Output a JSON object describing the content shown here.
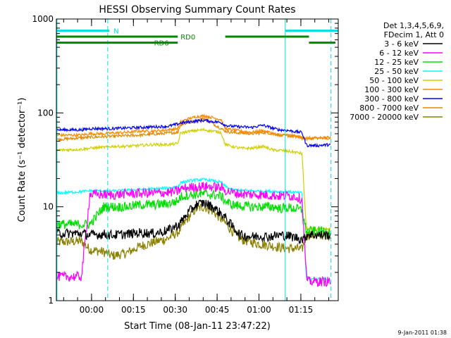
{
  "chart_data": {
    "type": "line",
    "title": "HESSI Observing Summary Count Rates",
    "xlabel": "Start Time (08-Jan-11 23:47:22)",
    "ylabel": "Count Rate (s⁻¹ detector⁻¹)",
    "x_unit": "minutes since start time",
    "xlim": [
      0,
      101
    ],
    "ylim": [
      1,
      1000
    ],
    "yscale": "log",
    "grid": false,
    "legend_position": "right",
    "x_ticks": [
      {
        "x": 12.6,
        "label": "00:00"
      },
      {
        "x": 27.6,
        "label": "00:15"
      },
      {
        "x": 42.6,
        "label": "00:30"
      },
      {
        "x": 57.6,
        "label": "00:45"
      },
      {
        "x": 72.6,
        "label": "01:00"
      },
      {
        "x": 87.6,
        "label": "01:15"
      }
    ],
    "y_ticks": [
      {
        "y": 1,
        "label": "1"
      },
      {
        "y": 10,
        "label": "10"
      },
      {
        "y": 100,
        "label": "100"
      },
      {
        "y": 1000,
        "label": "1000"
      }
    ],
    "legend_header": [
      "Det 1,3,4,5,6,9,",
      "FDecim 1, Att 0"
    ],
    "series": [
      {
        "name": "3 - 6 keV",
        "color": "#000000",
        "x": [
          0,
          9,
          12,
          17,
          20,
          25,
          30,
          35,
          40,
          44,
          47,
          50,
          53,
          56,
          60,
          63,
          66,
          70,
          73,
          76,
          80,
          83,
          86,
          88.5,
          90,
          94,
          98.4
        ],
        "y": [
          5.2,
          5.2,
          5.0,
          5.1,
          5.0,
          5.1,
          5.3,
          5.2,
          5.6,
          6.5,
          8.5,
          10.5,
          11,
          10,
          8,
          6.2,
          5.0,
          4.8,
          4.9,
          4.8,
          5.0,
          4.9,
          4.7,
          4.5,
          5.1,
          5.0,
          5.0
        ]
      },
      {
        "name": "6 - 12 keV",
        "color": "#ff00ff",
        "x": [
          0,
          4,
          9,
          12,
          17,
          20,
          25,
          30,
          35,
          40,
          43.5,
          44.5,
          47,
          50,
          53,
          56,
          59,
          60.5,
          63,
          66,
          70,
          74,
          78,
          80,
          83,
          86,
          88,
          89.5,
          90,
          94,
          98.4
        ],
        "y": [
          1.8,
          1.8,
          1.8,
          13.5,
          13.5,
          13.3,
          13.8,
          13.9,
          14,
          14.2,
          14.6,
          15.5,
          16,
          16.3,
          16.5,
          16.3,
          16,
          15,
          14.2,
          13.7,
          13.5,
          13.4,
          13.2,
          13,
          13.2,
          12.8,
          12,
          2,
          1.6,
          1.6,
          1.6
        ]
      },
      {
        "name": "12 - 25 keV",
        "color": "#00e000",
        "x": [
          0,
          9,
          12,
          17,
          20,
          25,
          30,
          35,
          40,
          43.5,
          44.5,
          47,
          50,
          53,
          56,
          59,
          60.5,
          63,
          66,
          70,
          74,
          78,
          80,
          83,
          86,
          88,
          89.5,
          90,
          94,
          98.4
        ],
        "y": [
          6.5,
          6.5,
          6.5,
          10,
          10,
          10,
          10.5,
          10.5,
          10.8,
          11.5,
          12.8,
          13.3,
          13.6,
          13.7,
          13.4,
          13,
          11.5,
          10.5,
          10.2,
          10,
          10,
          10,
          9.6,
          9.8,
          9.5,
          9.2,
          5.5,
          5.5,
          5.5,
          5.5
        ]
      },
      {
        "name": "25 - 50 keV",
        "color": "#00ffff",
        "x": [
          0,
          9,
          12,
          17,
          20,
          25,
          30,
          35,
          40,
          43.5,
          44.5,
          47,
          50,
          53,
          56,
          59,
          60.5,
          63,
          66,
          70,
          74,
          78,
          80,
          83,
          86,
          88,
          89.5,
          90,
          94,
          98.4
        ],
        "y": [
          14,
          14.5,
          14.8,
          14.8,
          14.7,
          15,
          15.3,
          15.5,
          15.8,
          16.5,
          18,
          18.8,
          19.3,
          19.5,
          19,
          18.2,
          16.5,
          15.2,
          15,
          14.8,
          14.7,
          14.6,
          14.4,
          14.5,
          14.2,
          14,
          1.8,
          1.7,
          1.7,
          1.7
        ]
      },
      {
        "name": "50 - 100 keV",
        "color": "#d0d000",
        "x": [
          0,
          9,
          12,
          17,
          20,
          25,
          30,
          35,
          40,
          43.5,
          44.5,
          47,
          50,
          53,
          56,
          59,
          60.5,
          63,
          66,
          70,
          74,
          78,
          80,
          83,
          86,
          88,
          89.5,
          90,
          94,
          98.4
        ],
        "y": [
          40,
          41,
          42,
          43,
          44,
          44,
          45,
          46,
          46,
          47,
          61,
          63,
          65,
          66,
          64,
          62,
          46,
          44,
          42,
          42,
          44,
          40,
          40,
          39,
          38,
          37,
          6,
          5.8,
          5.8,
          5.8
        ]
      },
      {
        "name": "100 - 300 keV",
        "color": "#ff8800",
        "x": [
          0,
          9,
          12,
          17,
          20,
          25,
          30,
          35,
          40,
          43.5,
          44.5,
          47,
          50,
          53,
          56,
          59,
          60.5,
          63,
          66,
          70,
          74,
          78,
          80,
          83,
          86,
          88,
          89.5,
          90,
          94,
          98.4
        ],
        "y": [
          58,
          58,
          60,
          60,
          61,
          62,
          64,
          64,
          66,
          68,
          80,
          86,
          91,
          93,
          89,
          85,
          68,
          66,
          64,
          62,
          65,
          60,
          58,
          58,
          56,
          55,
          54,
          54,
          54,
          54
        ]
      },
      {
        "name": "300 - 800 keV",
        "color": "#0000ff",
        "x": [
          0,
          9,
          12,
          17,
          20,
          25,
          30,
          35,
          40,
          43.5,
          44.5,
          47,
          50,
          53,
          56,
          59,
          60.5,
          63,
          66,
          70,
          74,
          78,
          80,
          83,
          86,
          88,
          89.5,
          90,
          94,
          98.4
        ],
        "y": [
          66,
          66,
          68,
          68,
          68,
          69,
          70,
          71,
          72,
          76,
          78,
          80,
          82,
          83,
          81,
          79,
          74,
          72,
          71,
          70,
          74,
          68,
          66,
          65,
          63,
          62,
          46,
          45,
          45,
          46
        ]
      },
      {
        "name": "800 - 7000 keV",
        "color": "#e08a00",
        "x": [
          0,
          12,
          30,
          43.5,
          44.5,
          53,
          60.5,
          63,
          70,
          75,
          80,
          86,
          88,
          89.5,
          98.4
        ],
        "y": [
          52,
          55,
          58,
          62,
          75,
          87,
          64,
          62,
          60,
          62,
          58,
          56,
          54,
          53,
          55
        ]
      },
      {
        "name": "7000 - 20000 keV",
        "color": "#8b8000",
        "x": [
          0,
          9,
          12,
          17,
          20,
          25,
          30,
          35,
          40,
          44,
          47,
          50,
          53,
          56,
          60,
          63,
          66,
          70,
          73,
          76,
          80,
          83,
          86,
          88,
          89.5,
          90,
          94,
          98.4
        ],
        "y": [
          4.2,
          4.3,
          3.5,
          3.3,
          3.0,
          3.2,
          3.8,
          4.2,
          4.6,
          5.5,
          7.5,
          9.5,
          10,
          9,
          7,
          5.5,
          4.5,
          4.2,
          4.0,
          3.9,
          3.7,
          3.6,
          3.6,
          3.5,
          4.8,
          5.0,
          5.0,
          5.0
        ]
      }
    ],
    "flag_bars": [
      {
        "label": "N",
        "color": "#00e0e0",
        "y": 750,
        "segments": [
          [
            0,
            19
          ],
          [
            82,
            101
          ]
        ],
        "label_x": 20.5
      },
      {
        "label": "RD0",
        "color": "#008800",
        "y": 650,
        "segments": [
          [
            0,
            43.5
          ],
          [
            60.5,
            90.5
          ]
        ],
        "label_x": 44.5
      },
      {
        "label": "RD6",
        "color": "#008800",
        "y": 560,
        "segments": [
          [
            0,
            43.5
          ],
          [
            90.5,
            100
          ]
        ],
        "label_x": 35
      }
    ],
    "vlines": [
      {
        "x": 0.2,
        "color": "#00e0e0",
        "style": "solid"
      },
      {
        "x": 18.4,
        "color": "#00e0e0",
        "style": "dashed"
      },
      {
        "x": 82,
        "color": "#00e0e0",
        "style": "solid"
      },
      {
        "x": 98.4,
        "color": "#00e0e0",
        "style": "dashed"
      }
    ]
  },
  "footer": {
    "timestamp": "9-Jan-2011 01:38"
  }
}
